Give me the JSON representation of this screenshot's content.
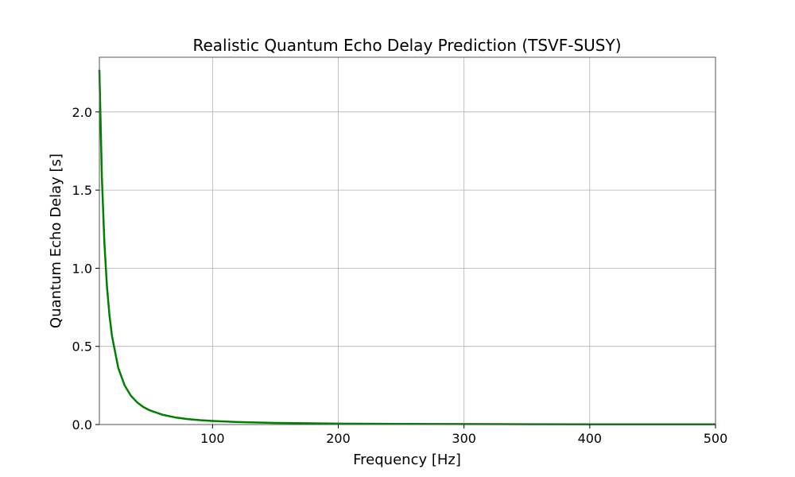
{
  "chart_data": {
    "type": "line",
    "title": "Realistic Quantum Echo Delay Prediction (TSVF-SUSY)",
    "xlabel": "Frequency [Hz]",
    "ylabel": "Quantum Echo Delay [s]",
    "xlim": [
      10,
      500
    ],
    "ylim": [
      0,
      2.35
    ],
    "xticks": [
      100,
      200,
      300,
      400,
      500
    ],
    "yticks": [
      0.0,
      0.5,
      1.0,
      1.5,
      2.0
    ],
    "xtick_labels": [
      "100",
      "200",
      "300",
      "400",
      "500"
    ],
    "ytick_labels": [
      "0.0",
      "0.5",
      "1.0",
      "1.5",
      "2.0"
    ],
    "grid": true,
    "series": [
      {
        "color": "#008000",
        "x": [
          10,
          12,
          14,
          16,
          18,
          20,
          25,
          30,
          35,
          40,
          45,
          50,
          60,
          70,
          80,
          90,
          100,
          120,
          150,
          200,
          250,
          300,
          350,
          400,
          450,
          500
        ],
        "y": [
          2.27,
          1.58,
          1.16,
          0.887,
          0.701,
          0.568,
          0.363,
          0.252,
          0.185,
          0.142,
          0.112,
          0.091,
          0.063,
          0.046,
          0.035,
          0.028,
          0.023,
          0.016,
          0.01,
          0.006,
          0.004,
          0.003,
          0.002,
          0.001,
          0.001,
          0.001
        ]
      }
    ]
  }
}
